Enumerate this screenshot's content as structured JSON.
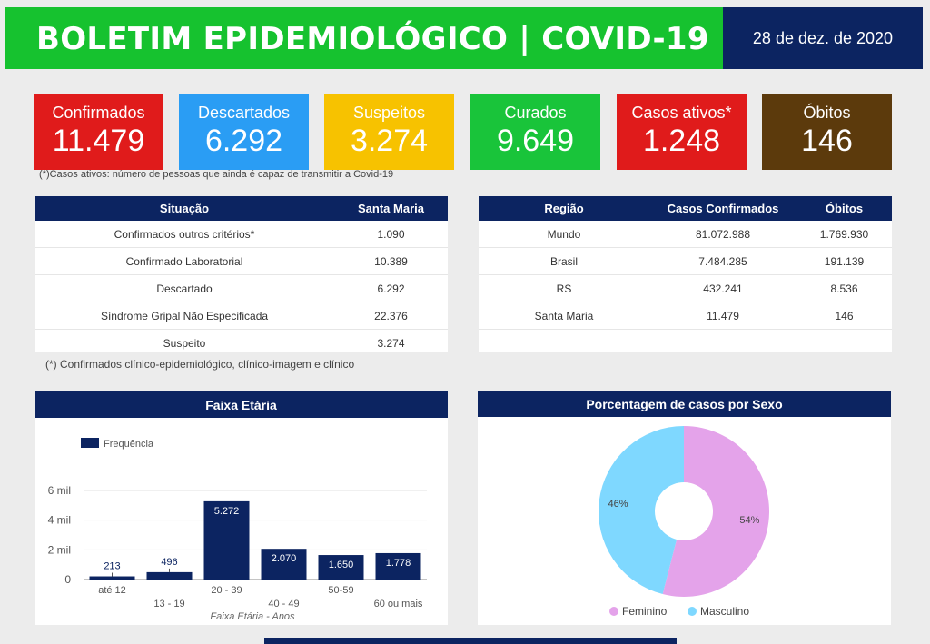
{
  "header": {
    "title": "BOLETIM EPIDEMIOLÓGICO | COVID-19",
    "date": "28 de dez. de 2020"
  },
  "colors": {
    "green": "#16c22f",
    "navy": "#0c2461",
    "red": "#e01b1b",
    "blue": "#2a9df4",
    "yellow": "#f7c200",
    "cured_green": "#19c43a",
    "brown": "#5c3a0c",
    "female_pink": "#e4a3ea",
    "male_cyan": "#7fd8ff"
  },
  "kpis": [
    {
      "label": "Confirmados",
      "value": "11.479",
      "color": "#e01b1b"
    },
    {
      "label": "Descartados",
      "value": "6.292",
      "color": "#2a9df4"
    },
    {
      "label": "Suspeitos",
      "value": "3.274",
      "color": "#f7c200"
    },
    {
      "label": "Curados",
      "value": "9.649",
      "color": "#19c43a"
    },
    {
      "label": "Casos ativos*",
      "value": "1.248",
      "color": "#e01b1b"
    },
    {
      "label": "Óbitos",
      "value": "146",
      "color": "#5c3a0c"
    }
  ],
  "active_cases_note": "(*)Casos ativos: número de pessoas que ainda é capaz de transmitir a Covid-19",
  "situation_table": {
    "headers": [
      "Situação",
      "Santa Maria"
    ],
    "rows": [
      [
        "Confirmados outros critérios*",
        "1.090"
      ],
      [
        "Confirmado Laboratorial",
        "10.389"
      ],
      [
        "Descartado",
        "6.292"
      ],
      [
        "Síndrome Gripal Não Especificada",
        "22.376"
      ],
      [
        "Suspeito",
        "3.274"
      ]
    ],
    "note": "(*) Confirmados clínico-epidemiológico, clínico-imagem e clínico"
  },
  "region_table": {
    "headers": [
      "Região",
      "Casos Confirmados",
      "Óbitos"
    ],
    "rows": [
      [
        "Mundo",
        "81.072.988",
        "1.769.930"
      ],
      [
        "Brasil",
        "7.484.285",
        "191.139"
      ],
      [
        "RS",
        "432.241",
        "8.536"
      ],
      [
        "Santa Maria",
        "11.479",
        "146"
      ]
    ]
  },
  "age_panel": {
    "title": "Faixa Etária"
  },
  "sex_panel": {
    "title": "Porcentagem de casos por Sexo"
  },
  "chart_data": [
    {
      "type": "bar",
      "title": "Faixa Etária",
      "legend": "Frequência",
      "categories": [
        "até 12",
        "13 - 19",
        "20 - 39",
        "40 - 49",
        "50-59",
        "60 ou mais"
      ],
      "values": [
        213,
        496,
        5272,
        2070,
        1650,
        1778
      ],
      "value_labels": [
        "213",
        "496",
        "5.272",
        "2.070",
        "1.650",
        "1.778"
      ],
      "yticks": [
        "0",
        "2 mil",
        "4 mil",
        "6 mil"
      ],
      "ylim": [
        0,
        6500
      ],
      "xlabel": "Faixa Etária - Anos",
      "ylabel": ""
    },
    {
      "type": "pie",
      "title": "Porcentagem de casos por Sexo",
      "labels": [
        "Feminino",
        "Masculino"
      ],
      "values": [
        54,
        46
      ],
      "value_labels": [
        "54%",
        "46%"
      ]
    }
  ]
}
